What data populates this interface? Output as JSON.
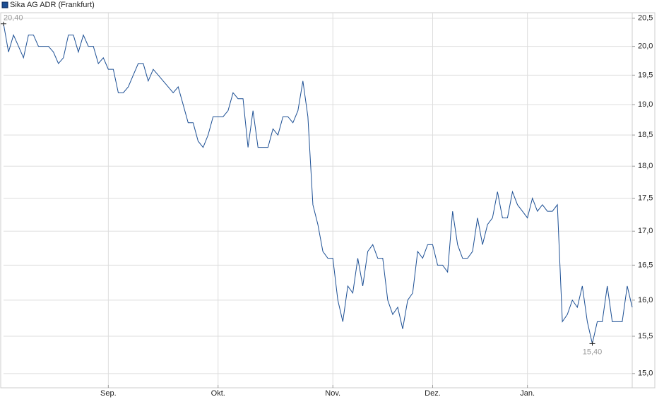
{
  "chart_data": {
    "type": "line",
    "series": [
      {
        "name": "Sika AG ADR (Frankfurt)",
        "color": "#1c4f94",
        "values": [
          20.4,
          19.9,
          20.2,
          20.0,
          19.8,
          20.2,
          20.2,
          20.0,
          20.0,
          20.0,
          19.9,
          19.7,
          19.8,
          20.2,
          20.2,
          19.9,
          20.2,
          20.0,
          20.0,
          19.7,
          19.8,
          19.6,
          19.6,
          19.2,
          19.2,
          19.3,
          19.5,
          19.7,
          19.7,
          19.4,
          19.6,
          19.5,
          19.4,
          19.3,
          19.2,
          19.3,
          19.0,
          18.7,
          18.7,
          18.4,
          18.3,
          18.5,
          18.8,
          18.8,
          18.8,
          18.9,
          19.2,
          19.1,
          19.1,
          18.3,
          18.9,
          18.3,
          18.3,
          18.3,
          18.6,
          18.5,
          18.8,
          18.8,
          18.7,
          18.9,
          19.4,
          18.8,
          17.4,
          17.1,
          16.7,
          16.6,
          16.6,
          16.0,
          15.7,
          16.2,
          16.1,
          16.6,
          16.2,
          16.7,
          16.8,
          16.6,
          16.6,
          16.0,
          15.8,
          15.9,
          15.6,
          16.0,
          16.1,
          16.7,
          16.6,
          16.8,
          16.8,
          16.5,
          16.5,
          16.4,
          17.3,
          16.8,
          16.6,
          16.6,
          16.7,
          17.2,
          16.8,
          17.1,
          17.2,
          17.6,
          17.2,
          17.2,
          17.6,
          17.4,
          17.3,
          17.2,
          17.5,
          17.3,
          17.4,
          17.3,
          17.3,
          17.4,
          15.7,
          15.8,
          16.0,
          15.9,
          16.2,
          15.7,
          15.4,
          15.7,
          15.7,
          16.2,
          15.7,
          15.7,
          15.7,
          16.2,
          15.9
        ],
        "value_labels": [
          "20,40",
          null,
          null,
          null,
          null,
          null,
          null,
          null,
          null,
          null,
          null,
          null,
          null,
          null,
          null,
          null,
          null,
          null,
          null,
          null,
          null,
          null,
          null,
          null,
          null,
          null,
          null,
          null,
          null,
          null,
          null,
          null,
          null,
          null,
          null,
          null,
          null,
          null,
          null,
          null,
          null,
          null,
          null,
          null,
          null,
          null,
          null,
          null,
          null,
          null,
          null,
          null,
          null,
          null,
          null,
          null,
          null,
          null,
          null,
          null,
          null,
          null,
          null,
          null,
          null,
          null,
          null,
          null,
          null,
          null,
          null,
          null,
          null,
          null,
          null,
          null,
          null,
          null,
          null,
          null,
          null,
          null,
          null,
          null,
          null,
          null,
          null,
          null,
          null,
          null,
          null,
          null,
          null,
          null,
          null,
          null,
          null,
          null,
          null,
          null,
          null,
          null,
          null,
          null,
          null,
          null,
          null,
          null,
          null,
          null,
          null,
          null,
          null,
          null,
          null,
          null,
          null,
          null,
          "15,40",
          null,
          null,
          null,
          null,
          null,
          null,
          null,
          null
        ]
      }
    ],
    "categories": [
      null,
      null,
      null,
      null,
      null,
      null,
      null,
      null,
      null,
      null,
      null,
      null,
      null,
      null,
      null,
      null,
      null,
      null,
      null,
      null,
      null,
      "Sep.",
      null,
      null,
      null,
      null,
      null,
      null,
      null,
      null,
      null,
      null,
      null,
      null,
      null,
      null,
      null,
      null,
      null,
      null,
      null,
      null,
      null,
      "Okt.",
      null,
      null,
      null,
      null,
      null,
      null,
      null,
      null,
      null,
      null,
      null,
      null,
      null,
      null,
      null,
      null,
      null,
      null,
      null,
      null,
      null,
      null,
      "Nov.",
      null,
      null,
      null,
      null,
      null,
      null,
      null,
      null,
      null,
      null,
      null,
      null,
      null,
      null,
      null,
      null,
      null,
      null,
      null,
      "Dez.",
      null,
      null,
      null,
      null,
      null,
      null,
      null,
      null,
      null,
      null,
      null,
      null,
      null,
      null,
      null,
      null,
      null,
      null,
      "Jan.",
      null,
      null,
      null,
      null,
      null,
      null,
      null,
      null,
      null,
      null,
      null,
      null,
      null,
      null,
      null,
      null,
      null,
      null,
      null,
      null,
      null
    ],
    "log_scale": true,
    "ylim": [
      14.85,
      20.6
    ],
    "yticks": [
      {
        "value": 15.0,
        "label": "15,0"
      },
      {
        "value": 15.5,
        "label": "15,5"
      },
      {
        "value": 16.0,
        "label": "16,0"
      },
      {
        "value": 16.5,
        "label": "16,5"
      },
      {
        "value": 17.0,
        "label": "17,0"
      },
      {
        "value": 17.5,
        "label": "17,5"
      },
      {
        "value": 18.0,
        "label": "18,0"
      },
      {
        "value": 18.5,
        "label": "18,5"
      },
      {
        "value": 19.0,
        "label": "19,0"
      },
      {
        "value": 19.5,
        "label": "19,5"
      },
      {
        "value": 20.0,
        "label": "20,0"
      },
      {
        "value": 20.5,
        "label": "20,5"
      }
    ],
    "grid": true,
    "legend": "top-left"
  }
}
